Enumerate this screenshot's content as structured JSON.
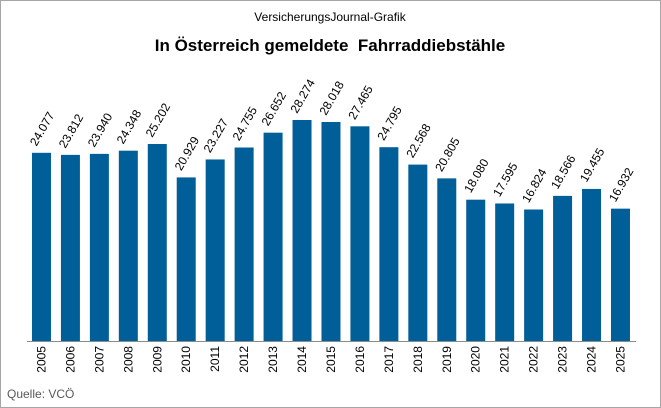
{
  "header": {
    "source_line": "VersicherungsJournal-Grafik"
  },
  "footer": {
    "source": "Quelle: VCÖ"
  },
  "chart_data": {
    "type": "bar",
    "title": "In Österreich gemeldete  Fahrraddiebstähle",
    "xlabel": "",
    "ylabel": "",
    "categories": [
      "2005",
      "2006",
      "2007",
      "2008",
      "2009",
      "2010",
      "2011",
      "2012",
      "2013",
      "2014",
      "2015",
      "2016",
      "2017",
      "2018",
      "2019",
      "2020",
      "2021",
      "2022",
      "2023",
      "2024",
      "2025"
    ],
    "values": [
      24077,
      23812,
      23940,
      24348,
      25202,
      20929,
      23227,
      24755,
      26652,
      28274,
      28018,
      27465,
      24795,
      22568,
      20805,
      18080,
      17595,
      16824,
      18566,
      19455,
      16932
    ],
    "data_labels": [
      "24.077",
      "23.812",
      "23.940",
      "24.348",
      "25.202",
      "20.929",
      "23.227",
      "24.755",
      "26.652",
      "28.274",
      "28.018",
      "27.465",
      "24.795",
      "22.568",
      "20.805",
      "18.080",
      "17.595",
      "16.824",
      "18.566",
      "19.455",
      "16.932"
    ],
    "ylim": [
      0,
      43000
    ],
    "grid": false,
    "legend": "none",
    "colors": {
      "bar": "#005f99",
      "border": "#a6a6a6",
      "text": "#000000"
    }
  }
}
